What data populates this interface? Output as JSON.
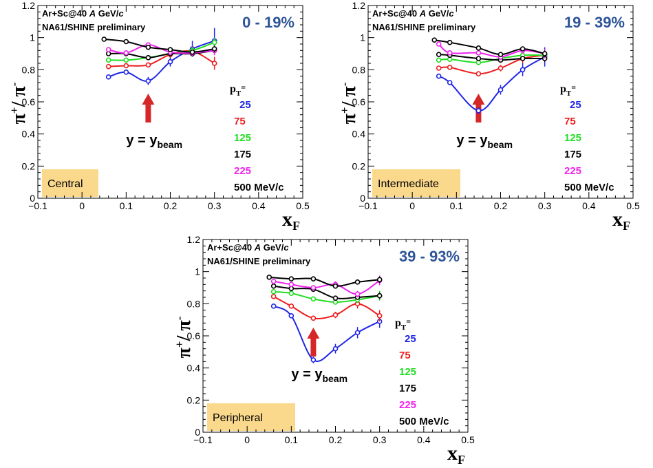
{
  "colors": {
    "c25": "#1f25e6",
    "c75": "#ee1c1c",
    "c125": "#22dd22",
    "c175": "#000000",
    "c225": "#ee22ee",
    "label_blue": "#2e5597",
    "box_fill": "#fbd98c",
    "arrow": "#d62728"
  },
  "chart_data": [
    {
      "type": "line",
      "experiment": "Ar+Sc@40",
      "experiment_A": "A",
      "experiment_unit": "GeV/",
      "experiment_c": "c",
      "preliminary": "NA61/SHINE preliminary",
      "centrality_label": "0 - 19%",
      "region_label": "Central",
      "ylabel_main": "π",
      "ylabel_sup1": "+",
      "ylabel_slash": "/ π",
      "ylabel_sup2": "-",
      "xlabel_main": "x",
      "xlabel_sub": "F",
      "pt_title": "p",
      "pt_title_sub": "T",
      "pt_title_eq": "=",
      "pt_unit": "500 MeV/c",
      "beam_label": "y = y",
      "beam_label_sub": "beam",
      "beam_x": 0.15,
      "xlim": [
        -0.1,
        0.5
      ],
      "ylim": [
        0,
        1.2
      ],
      "xticks": [
        "−0.1",
        "0",
        "0.1",
        "0.2",
        "0.3",
        "0.4",
        "0.5"
      ],
      "yticks": [
        "0",
        "0.2",
        "0.4",
        "0.6",
        "0.8",
        "1",
        "1.2"
      ],
      "series": [
        {
          "name": "25",
          "color_key": "c25",
          "x": [
            0.06,
            0.1,
            0.15,
            0.2,
            0.25,
            0.3
          ],
          "y": [
            0.755,
            0.785,
            0.73,
            0.85,
            0.93,
            0.98
          ],
          "err": [
            0.015,
            0.015,
            0.025,
            0.03,
            0.05,
            0.08
          ]
        },
        {
          "name": "75",
          "color_key": "c75",
          "x": [
            0.06,
            0.1,
            0.15,
            0.2,
            0.25,
            0.3
          ],
          "y": [
            0.82,
            0.825,
            0.83,
            0.895,
            0.915,
            0.84
          ],
          "err": [
            0.01,
            0.01,
            0.015,
            0.02,
            0.03,
            0.04
          ]
        },
        {
          "name": "125",
          "color_key": "c125",
          "x": [
            0.06,
            0.1,
            0.15,
            0.2,
            0.25,
            0.3
          ],
          "y": [
            0.86,
            0.86,
            0.875,
            0.9,
            0.92,
            0.97
          ],
          "err": [
            0.01,
            0.01,
            0.01,
            0.015,
            0.02,
            0.03
          ]
        },
        {
          "name": "175",
          "color_key": "c175",
          "x": [
            0.06,
            0.1,
            0.15,
            0.2,
            0.25,
            0.3
          ],
          "y": [
            0.9,
            0.9,
            0.875,
            0.9,
            0.9,
            0.92
          ],
          "err": [
            0.01,
            0.01,
            0.01,
            0.012,
            0.015,
            0.02
          ]
        },
        {
          "name": "225",
          "color_key": "c225",
          "x": [
            0.06,
            0.1,
            0.15,
            0.2,
            0.25,
            0.3
          ],
          "y": [
            0.925,
            0.905,
            0.955,
            0.91,
            0.905,
            0.92
          ],
          "err": [
            0.01,
            0.012,
            0.015,
            0.02,
            0.02,
            0.03
          ]
        },
        {
          "name": "500",
          "color_key": "c175",
          "x": [
            0.05,
            0.1,
            0.15,
            0.2,
            0.25,
            0.3
          ],
          "y": [
            0.99,
            0.975,
            0.94,
            0.925,
            0.91,
            0.93
          ],
          "err": [
            0.005,
            0.008,
            0.01,
            0.012,
            0.015,
            0.02
          ]
        }
      ]
    },
    {
      "type": "line",
      "experiment": "Ar+Sc@40",
      "experiment_A": "A",
      "experiment_unit": "GeV/",
      "experiment_c": "c",
      "preliminary": "NA61/SHINE preliminary",
      "centrality_label": "19 - 39%",
      "region_label": "Intermediate",
      "ylabel_main": "π",
      "ylabel_sup1": "+",
      "ylabel_slash": "/ π",
      "ylabel_sup2": "-",
      "xlabel_main": "x",
      "xlabel_sub": "F",
      "pt_title": "p",
      "pt_title_sub": "T",
      "pt_title_eq": "=",
      "pt_unit": "500 MeV/c",
      "beam_label": "y = y",
      "beam_label_sub": "beam",
      "beam_x": 0.15,
      "xlim": [
        -0.1,
        0.5
      ],
      "ylim": [
        0,
        1.2
      ],
      "xticks": [
        "−0.1",
        "0",
        "0.1",
        "0.2",
        "0.3",
        "0.4",
        "0.5"
      ],
      "yticks": [
        "0",
        "0.2",
        "0.4",
        "0.6",
        "0.8",
        "1",
        "1.2"
      ],
      "series": [
        {
          "name": "25",
          "color_key": "c25",
          "x": [
            0.06,
            0.085,
            0.15,
            0.2,
            0.25,
            0.3
          ],
          "y": [
            0.76,
            0.72,
            0.545,
            0.675,
            0.8,
            0.88
          ],
          "err": [
            0.015,
            0.015,
            0.02,
            0.03,
            0.04,
            0.06
          ]
        },
        {
          "name": "75",
          "color_key": "c75",
          "x": [
            0.06,
            0.085,
            0.15,
            0.2,
            0.25,
            0.3
          ],
          "y": [
            0.81,
            0.815,
            0.775,
            0.81,
            0.87,
            0.89
          ],
          "err": [
            0.01,
            0.01,
            0.015,
            0.02,
            0.03,
            0.04
          ]
        },
        {
          "name": "125",
          "color_key": "c125",
          "x": [
            0.06,
            0.085,
            0.15,
            0.2,
            0.25,
            0.3
          ],
          "y": [
            0.86,
            0.865,
            0.845,
            0.87,
            0.89,
            0.89
          ],
          "err": [
            0.01,
            0.01,
            0.01,
            0.015,
            0.02,
            0.03
          ]
        },
        {
          "name": "175",
          "color_key": "c175",
          "x": [
            0.06,
            0.085,
            0.15,
            0.2,
            0.25,
            0.3
          ],
          "y": [
            0.895,
            0.89,
            0.87,
            0.86,
            0.87,
            0.87
          ],
          "err": [
            0.01,
            0.01,
            0.01,
            0.012,
            0.015,
            0.02
          ]
        },
        {
          "name": "225",
          "color_key": "c225",
          "x": [
            0.06,
            0.085,
            0.15,
            0.2,
            0.25,
            0.3
          ],
          "y": [
            0.96,
            0.905,
            0.905,
            0.88,
            0.92,
            0.9
          ],
          "err": [
            0.01,
            0.012,
            0.015,
            0.02,
            0.02,
            0.03
          ]
        },
        {
          "name": "500",
          "color_key": "c175",
          "x": [
            0.05,
            0.085,
            0.15,
            0.2,
            0.25,
            0.3
          ],
          "y": [
            0.985,
            0.97,
            0.935,
            0.895,
            0.93,
            0.9
          ],
          "err": [
            0.005,
            0.008,
            0.01,
            0.012,
            0.015,
            0.02
          ]
        }
      ]
    },
    {
      "type": "line",
      "experiment": "Ar+Sc@40",
      "experiment_A": "A",
      "experiment_unit": "GeV/",
      "experiment_c": "c",
      "preliminary": "NA61/SHINE preliminary",
      "centrality_label": "39 - 93%",
      "region_label": "Peripheral",
      "ylabel_main": "π",
      "ylabel_sup1": "+",
      "ylabel_slash": "/ π",
      "ylabel_sup2": "-",
      "xlabel_main": "x",
      "xlabel_sub": "F",
      "pt_title": "p",
      "pt_title_sub": "T",
      "pt_title_eq": "=",
      "pt_unit": "500 MeV/c",
      "beam_label": "y = y",
      "beam_label_sub": "beam",
      "beam_x": 0.15,
      "xlim": [
        -0.1,
        0.5
      ],
      "ylim": [
        0,
        1.2
      ],
      "xticks": [
        "−0.1",
        "0",
        "0.1",
        "0.2",
        "0.3",
        "0.4",
        "0.5"
      ],
      "yticks": [
        "0",
        "0.2",
        "0.4",
        "0.6",
        "0.8",
        "1",
        "1.2"
      ],
      "series": [
        {
          "name": "25",
          "color_key": "c25",
          "x": [
            0.06,
            0.1,
            0.15,
            0.2,
            0.25,
            0.3
          ],
          "y": [
            0.785,
            0.725,
            0.45,
            0.52,
            0.62,
            0.69
          ],
          "err": [
            0.015,
            0.015,
            0.02,
            0.03,
            0.035,
            0.04
          ]
        },
        {
          "name": "75",
          "color_key": "c75",
          "x": [
            0.06,
            0.1,
            0.15,
            0.2,
            0.25,
            0.3
          ],
          "y": [
            0.845,
            0.785,
            0.71,
            0.73,
            0.8,
            0.725
          ],
          "err": [
            0.01,
            0.01,
            0.015,
            0.02,
            0.03,
            0.035
          ]
        },
        {
          "name": "125",
          "color_key": "c125",
          "x": [
            0.06,
            0.1,
            0.15,
            0.2,
            0.25,
            0.3
          ],
          "y": [
            0.875,
            0.865,
            0.83,
            0.81,
            0.825,
            0.85
          ],
          "err": [
            0.01,
            0.01,
            0.01,
            0.015,
            0.02,
            0.03
          ]
        },
        {
          "name": "175",
          "color_key": "c175",
          "x": [
            0.06,
            0.1,
            0.15,
            0.2,
            0.25,
            0.3
          ],
          "y": [
            0.91,
            0.895,
            0.89,
            0.835,
            0.84,
            0.85
          ],
          "err": [
            0.01,
            0.01,
            0.01,
            0.012,
            0.015,
            0.02
          ]
        },
        {
          "name": "225",
          "color_key": "c225",
          "x": [
            0.06,
            0.1,
            0.15,
            0.2,
            0.25,
            0.3
          ],
          "y": [
            0.94,
            0.92,
            0.9,
            0.92,
            0.86,
            0.945
          ],
          "err": [
            0.01,
            0.012,
            0.015,
            0.02,
            0.02,
            0.03
          ]
        },
        {
          "name": "500",
          "color_key": "c175",
          "x": [
            0.05,
            0.1,
            0.15,
            0.2,
            0.25,
            0.3
          ],
          "y": [
            0.965,
            0.955,
            0.955,
            0.91,
            0.935,
            0.95
          ],
          "err": [
            0.005,
            0.008,
            0.01,
            0.012,
            0.015,
            0.02
          ]
        }
      ]
    }
  ]
}
